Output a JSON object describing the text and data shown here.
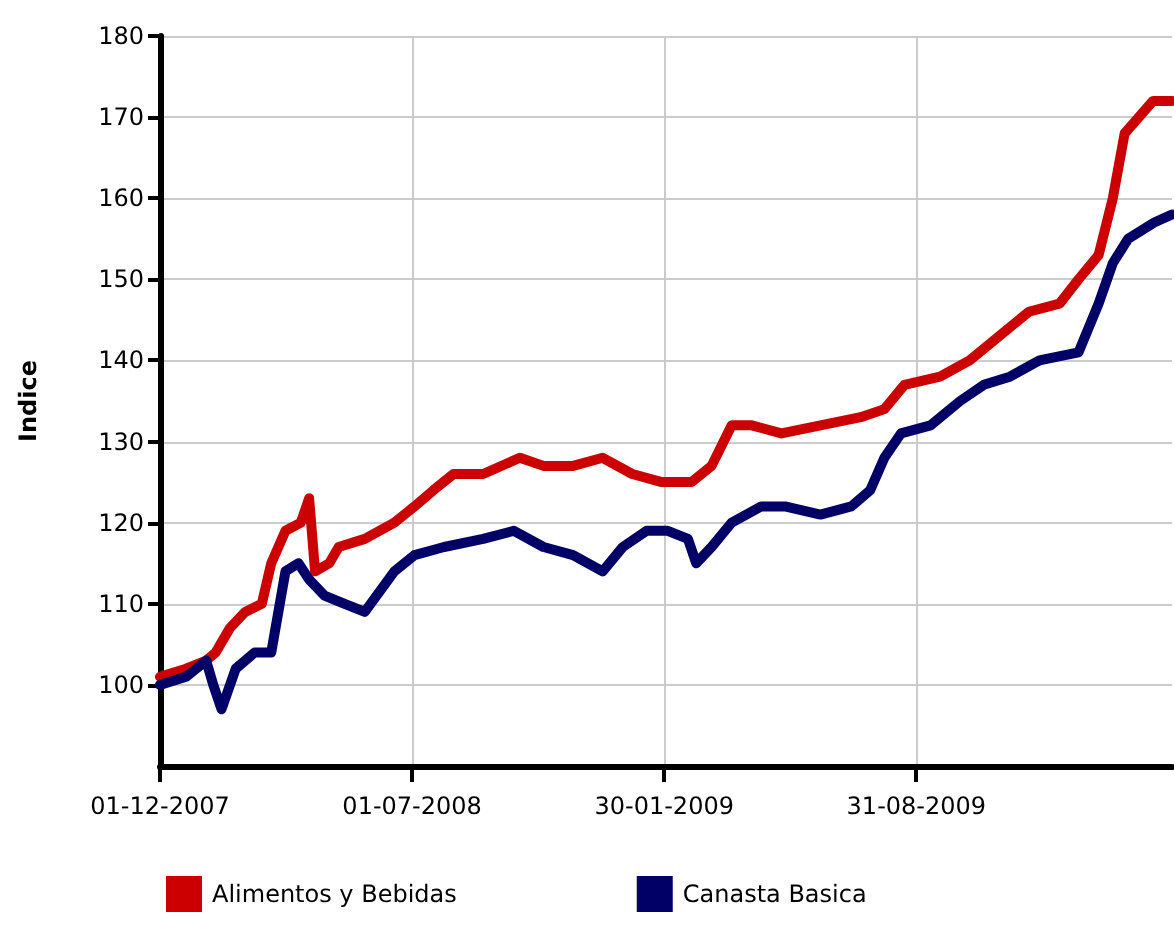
{
  "chart_data": {
    "type": "line",
    "ylabel": "Indice",
    "xlim": [
      "2007-12-01",
      "2010-04-04"
    ],
    "xticks": [
      {
        "value": "2007-12-01",
        "label": "01-12-2007"
      },
      {
        "value": "2008-07-01",
        "label": "01-07-2008"
      },
      {
        "value": "2009-01-30",
        "label": "30-01-2009"
      },
      {
        "value": "2009-08-31",
        "label": "31-08-2009"
      }
    ],
    "ylim": [
      90,
      180
    ],
    "yticks": [
      100,
      110,
      120,
      130,
      140,
      150,
      160,
      170,
      180
    ],
    "grid": true,
    "legend": "bottom left",
    "marker": "none",
    "line_style": "solid",
    "series": [
      {
        "name": "Alimentos y Bebidas",
        "color": "#cc0000",
        "x": [
          "2007-12-01",
          "2007-12-23",
          "2008-01-09",
          "2008-01-17",
          "2008-01-29",
          "2008-02-11",
          "2008-02-25",
          "2008-03-04",
          "2008-03-16",
          "2008-03-29",
          "2008-04-05",
          "2008-04-10",
          "2008-04-22",
          "2008-04-30",
          "2008-05-22",
          "2008-06-16",
          "2008-07-03",
          "2008-07-19",
          "2008-08-05",
          "2008-08-30",
          "2008-09-30",
          "2008-10-20",
          "2008-11-14",
          "2008-12-09",
          "2009-01-03",
          "2009-01-28",
          "2009-02-22",
          "2009-03-11",
          "2009-03-28",
          "2009-04-14",
          "2009-05-09",
          "2009-06-11",
          "2009-07-15",
          "2009-08-04",
          "2009-08-21",
          "2009-09-20",
          "2009-10-15",
          "2009-11-09",
          "2009-12-04",
          "2009-12-30",
          "2010-01-15",
          "2010-02-01",
          "2010-02-13",
          "2010-02-23",
          "2010-03-07",
          "2010-03-19",
          "2010-04-04"
        ],
        "values": [
          101,
          102,
          103,
          104,
          107,
          109,
          110,
          115,
          119,
          120,
          123,
          114,
          115,
          117,
          118,
          120,
          122,
          124,
          126,
          126,
          128,
          127,
          127,
          128,
          126,
          125,
          125,
          127,
          132,
          132,
          131,
          132,
          133,
          134,
          137,
          138,
          140,
          143,
          146,
          147,
          150,
          153,
          160,
          168,
          170,
          172,
          172
        ]
      },
      {
        "name": "Canasta Basica",
        "color": "#000066",
        "x": [
          "2007-12-01",
          "2007-12-23",
          "2008-01-09",
          "2008-01-15",
          "2008-01-22",
          "2008-02-03",
          "2008-02-19",
          "2008-03-04",
          "2008-03-16",
          "2008-03-27",
          "2008-04-05",
          "2008-04-18",
          "2008-05-05",
          "2008-05-22",
          "2008-06-16",
          "2008-07-03",
          "2008-07-28",
          "2008-08-30",
          "2008-09-25",
          "2008-10-20",
          "2008-11-14",
          "2008-12-09",
          "2008-12-26",
          "2009-01-15",
          "2009-02-02",
          "2009-02-19",
          "2009-02-26",
          "2009-03-11",
          "2009-03-28",
          "2009-04-22",
          "2009-05-12",
          "2009-06-11",
          "2009-07-07",
          "2009-07-23",
          "2009-08-04",
          "2009-08-18",
          "2009-09-12",
          "2009-10-07",
          "2009-10-27",
          "2009-11-18",
          "2009-12-13",
          "2010-01-15",
          "2010-02-01",
          "2010-02-13",
          "2010-02-26",
          "2010-03-20",
          "2010-04-04"
        ],
        "values": [
          100,
          101,
          103,
          100,
          97,
          102,
          104,
          104,
          114,
          115,
          113,
          111,
          110,
          109,
          114,
          116,
          117,
          118,
          119,
          117,
          116,
          114,
          117,
          119,
          119,
          118,
          115,
          117,
          120,
          122,
          122,
          121,
          122,
          124,
          128,
          131,
          132,
          135,
          137,
          138,
          140,
          141,
          147,
          152,
          155,
          157,
          158
        ]
      }
    ]
  }
}
